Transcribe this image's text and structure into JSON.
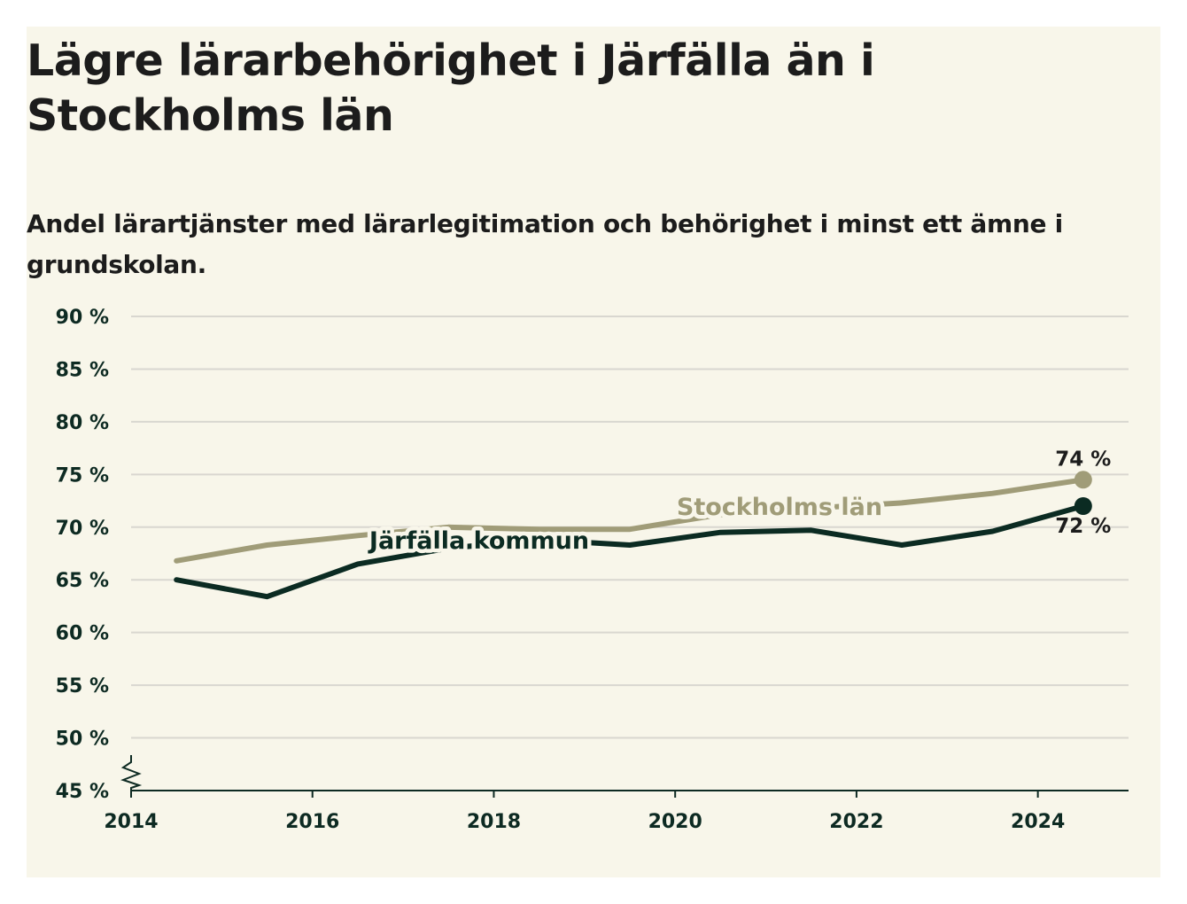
{
  "page": {
    "title": "Lägre lärarbehörighet i Järfälla än i Stockholms län",
    "subtitle": "Andel lärartjänster med lärarlegitimation och behörighet i minst ett ämne i grundskolan."
  },
  "chart_data": {
    "type": "line",
    "title": "Lägre lärarbehörighet i Järfälla än i Stockholms län",
    "subtitle": "Andel lärartjänster med lärarlegitimation och behörighet i minst ett ämne i grundskolan.",
    "x": [
      2014.5,
      2015.5,
      2016.5,
      2017.5,
      2018.5,
      2019.5,
      2020.5,
      2021.5,
      2022.5,
      2023.5,
      2024.5
    ],
    "x_ticks": [
      "2014",
      "2016",
      "2018",
      "2020",
      "2022",
      "2024"
    ],
    "x_tick_values": [
      2014,
      2016,
      2018,
      2020,
      2022,
      2024
    ],
    "xlim": [
      2014,
      2025
    ],
    "y_ticks": [
      "45 %",
      "50 %",
      "55 %",
      "60 %",
      "65 %",
      "70 %",
      "75 %",
      "80 %",
      "85 %",
      "90 %"
    ],
    "y_tick_values": [
      45,
      50,
      55,
      60,
      65,
      70,
      75,
      80,
      85,
      90
    ],
    "ylim": [
      45,
      90
    ],
    "grid": true,
    "axis_break": true,
    "series": [
      {
        "name": "Stockholms län",
        "color": "#a09c78",
        "values": [
          66.8,
          68.3,
          69.2,
          70.0,
          69.8,
          69.8,
          71.2,
          71.8,
          72.3,
          73.2,
          74.5
        ],
        "end_label": "74 %"
      },
      {
        "name": "Järfälla kommun",
        "color": "#0b2b22",
        "values": [
          65.0,
          63.4,
          66.5,
          68.0,
          68.8,
          68.3,
          69.5,
          69.7,
          68.3,
          69.6,
          72.0
        ],
        "end_label": "72 %"
      }
    ]
  }
}
